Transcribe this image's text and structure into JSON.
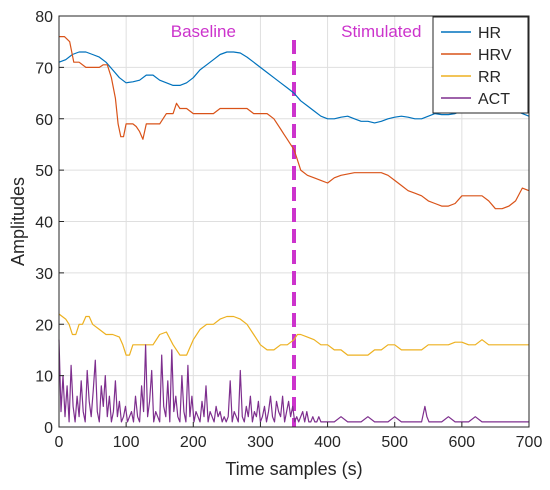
{
  "chart_data": {
    "type": "line",
    "title": "",
    "xlabel": "Time samples (s)",
    "ylabel": "Amplitudes",
    "xlim": [
      0,
      700
    ],
    "ylim": [
      0,
      80
    ],
    "xticks": [
      0,
      100,
      200,
      300,
      400,
      500,
      600,
      700
    ],
    "yticks": [
      0,
      10,
      20,
      30,
      40,
      50,
      60,
      70,
      80
    ],
    "grid": true,
    "legend_position": "top-right",
    "annotations": {
      "divider_x": 350,
      "divider_color": "#cc33cc",
      "left_label": "Baseline",
      "right_label": "Stimulated",
      "left_label_x": 215,
      "right_label_x": 480
    },
    "series": [
      {
        "name": "HR",
        "color": "#0072bd",
        "x": [
          0,
          10,
          20,
          30,
          40,
          50,
          60,
          70,
          80,
          90,
          100,
          110,
          120,
          130,
          140,
          150,
          160,
          170,
          180,
          190,
          200,
          210,
          220,
          230,
          240,
          250,
          260,
          270,
          280,
          290,
          300,
          310,
          320,
          330,
          340,
          350,
          360,
          370,
          380,
          390,
          400,
          410,
          420,
          430,
          440,
          450,
          460,
          470,
          480,
          490,
          500,
          510,
          520,
          530,
          540,
          550,
          560,
          570,
          580,
          590,
          600,
          610,
          620,
          630,
          640,
          650,
          660,
          670,
          680,
          690,
          700
        ],
        "y": [
          71,
          71.5,
          72.5,
          73,
          73,
          72.5,
          72,
          71,
          69.5,
          68,
          67,
          67.2,
          67.5,
          68.5,
          68.5,
          67.5,
          67,
          66.5,
          66.5,
          67,
          68,
          69.5,
          70.5,
          71.5,
          72.5,
          73,
          73,
          72.8,
          72,
          71,
          70,
          69,
          68,
          67,
          66,
          65,
          63.5,
          62.5,
          61.5,
          60.5,
          60,
          60,
          60.3,
          60.5,
          60,
          59.5,
          59.5,
          59.2,
          59.5,
          60,
          60.3,
          60.5,
          60.3,
          60,
          60,
          60.5,
          61,
          60.8,
          60.8,
          61,
          61.5,
          62,
          62.5,
          63,
          63,
          63,
          62.5,
          62,
          61.5,
          61,
          60.5
        ]
      },
      {
        "name": "HRV",
        "color": "#d95319",
        "x": [
          0,
          8,
          16,
          22,
          30,
          40,
          50,
          60,
          66,
          72,
          78,
          84,
          88,
          92,
          96,
          100,
          110,
          115,
          120,
          125,
          130,
          140,
          150,
          160,
          170,
          175,
          180,
          190,
          200,
          210,
          220,
          230,
          240,
          250,
          260,
          270,
          280,
          290,
          300,
          310,
          320,
          330,
          335,
          340,
          345,
          350,
          355,
          360,
          370,
          380,
          390,
          400,
          410,
          420,
          440,
          460,
          480,
          490,
          500,
          510,
          520,
          530,
          540,
          550,
          560,
          570,
          580,
          590,
          600,
          610,
          620,
          630,
          640,
          650,
          660,
          670,
          680,
          690,
          700
        ],
        "y": [
          76,
          76,
          75,
          71,
          71,
          70,
          70,
          70,
          70.5,
          70.5,
          68,
          64,
          59,
          56.5,
          56.5,
          59,
          59,
          58.5,
          57.5,
          56,
          59,
          59,
          59,
          61,
          61,
          63,
          62,
          62,
          61,
          61,
          61,
          61,
          62,
          62,
          62,
          62,
          62,
          61,
          61,
          61,
          60,
          58,
          57,
          56,
          55,
          54,
          52,
          50,
          49,
          48.5,
          48,
          47.5,
          48.5,
          49,
          49.5,
          49.5,
          49.5,
          49,
          48,
          47,
          46,
          45.5,
          45,
          44,
          43.5,
          43,
          43,
          43.5,
          45,
          45,
          45,
          45,
          44,
          42.5,
          42.5,
          43,
          44,
          46.5,
          46
        ]
      },
      {
        "name": "RR",
        "color": "#edb120",
        "x": [
          0,
          10,
          15,
          20,
          25,
          30,
          35,
          40,
          45,
          50,
          60,
          70,
          80,
          90,
          95,
          100,
          105,
          110,
          120,
          130,
          140,
          150,
          160,
          170,
          180,
          190,
          200,
          210,
          220,
          230,
          240,
          250,
          260,
          270,
          280,
          290,
          300,
          310,
          320,
          330,
          340,
          350,
          355,
          360,
          370,
          380,
          390,
          400,
          410,
          420,
          430,
          440,
          450,
          460,
          470,
          480,
          490,
          500,
          510,
          520,
          530,
          540,
          550,
          560,
          570,
          580,
          590,
          600,
          610,
          620,
          630,
          640,
          650,
          660,
          670,
          680,
          690,
          700
        ],
        "y": [
          22,
          21,
          20,
          18,
          18,
          20,
          20,
          21.5,
          21.5,
          20,
          19,
          18,
          18,
          17.5,
          16,
          14,
          14,
          16,
          16,
          16,
          16,
          18,
          18.5,
          16,
          14,
          14,
          17,
          19,
          20,
          20,
          21,
          21.5,
          21.5,
          21,
          20,
          18,
          16,
          15,
          15,
          16,
          16,
          17,
          18,
          18,
          17.5,
          17,
          16,
          16,
          15,
          15,
          14,
          14,
          14,
          14,
          15,
          15,
          16,
          16,
          15,
          15,
          15,
          15,
          16,
          16,
          16,
          16,
          16.5,
          16.5,
          16,
          16,
          17,
          16,
          16,
          16,
          16,
          16,
          16,
          16
        ]
      },
      {
        "name": "ACT",
        "color": "#7e2f8e",
        "x": [
          0,
          3,
          6,
          9,
          12,
          15,
          18,
          21,
          24,
          27,
          30,
          33,
          36,
          39,
          42,
          45,
          48,
          51,
          54,
          57,
          60,
          63,
          66,
          69,
          72,
          75,
          78,
          81,
          84,
          87,
          90,
          93,
          96,
          99,
          102,
          105,
          108,
          111,
          114,
          117,
          120,
          123,
          126,
          129,
          132,
          135,
          138,
          141,
          144,
          147,
          150,
          153,
          156,
          159,
          162,
          165,
          168,
          171,
          174,
          177,
          180,
          183,
          186,
          189,
          192,
          195,
          198,
          201,
          204,
          207,
          210,
          213,
          216,
          219,
          222,
          225,
          228,
          231,
          234,
          237,
          240,
          243,
          246,
          249,
          252,
          255,
          258,
          261,
          264,
          267,
          270,
          273,
          276,
          279,
          282,
          285,
          288,
          291,
          294,
          297,
          300,
          303,
          306,
          309,
          312,
          315,
          318,
          321,
          324,
          327,
          330,
          333,
          336,
          339,
          342,
          345,
          348,
          351,
          354,
          357,
          360,
          363,
          366,
          369,
          372,
          375,
          378,
          381,
          384,
          387,
          390,
          400,
          410,
          420,
          430,
          440,
          450,
          460,
          470,
          480,
          490,
          500,
          510,
          520,
          530,
          540,
          545,
          548,
          551,
          555,
          560,
          570,
          580,
          590,
          600,
          610,
          620,
          630,
          640,
          650,
          660,
          670,
          680,
          690,
          700
        ],
        "y": [
          17,
          3,
          10,
          2,
          8,
          1,
          12,
          4,
          1,
          6,
          2,
          9,
          3,
          1,
          11,
          5,
          2,
          7,
          13,
          3,
          1,
          8,
          4,
          10,
          2,
          6,
          1,
          3,
          9,
          2,
          5,
          1,
          2,
          4,
          1,
          2,
          3,
          1,
          6,
          2,
          1,
          8,
          3,
          16,
          2,
          5,
          11,
          1,
          3,
          2,
          1,
          14,
          4,
          2,
          9,
          1,
          15,
          3,
          6,
          2,
          1,
          10,
          3,
          1,
          12,
          2,
          6,
          1,
          3,
          2,
          1,
          5,
          2,
          8,
          1,
          3,
          2,
          1,
          4,
          2,
          3,
          1,
          2,
          1,
          2,
          9,
          1,
          3,
          2,
          1,
          11,
          2,
          1,
          4,
          2,
          6,
          1,
          3,
          2,
          5,
          1,
          2,
          4,
          1,
          3,
          6,
          2,
          1,
          5,
          3,
          2,
          6,
          1,
          3,
          5,
          2,
          4,
          1,
          2,
          1,
          2,
          3,
          1,
          3,
          1,
          1,
          2,
          1,
          1,
          2,
          1,
          1,
          1,
          2,
          1,
          1,
          1,
          2,
          1,
          1,
          1,
          2,
          1,
          1,
          1,
          1,
          4,
          2,
          1,
          1,
          1,
          1,
          2,
          1,
          1,
          1,
          2,
          1,
          1,
          1,
          1,
          1,
          1,
          1,
          1
        ]
      }
    ]
  }
}
